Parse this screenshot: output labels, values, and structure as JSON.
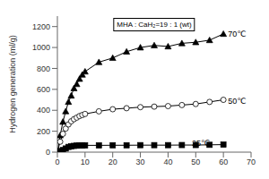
{
  "chart_data": {
    "type": "line",
    "title": "MHA : CaH₂=19 : 1 (wt)",
    "ylabel": "Hydrogen generation (ml/g)",
    "x": [
      0,
      1,
      2,
      3,
      4,
      5,
      6,
      7,
      8,
      9,
      10,
      15,
      20,
      25,
      30,
      35,
      40,
      45,
      50,
      55,
      60
    ],
    "series": [
      {
        "color": "#000000",
        "marker": "triangle",
        "values": [
          0,
          160,
          290,
          390,
          480,
          540,
          610,
          650,
          700,
          740,
          770,
          860,
          900,
          960,
          1000,
          1020,
          1010,
          1040,
          1050,
          1070,
          1130
        ]
      },
      {
        "color": "#000000",
        "marker": "circle-open",
        "values": [
          0,
          100,
          175,
          225,
          265,
          295,
          315,
          330,
          345,
          355,
          365,
          390,
          410,
          420,
          430,
          435,
          440,
          450,
          460,
          480,
          500
        ]
      },
      {
        "color": "#000000",
        "marker": "square",
        "values": [
          0,
          10,
          20,
          35,
          50,
          55,
          60,
          62,
          63,
          64,
          65,
          65,
          66,
          66,
          67,
          67,
          67,
          68,
          68,
          70,
          72
        ]
      }
    ],
    "annotations": [
      {
        "text": "70℃",
        "x": 61,
        "y": 1130
      },
      {
        "text": "50℃",
        "x": 61,
        "y": 490
      },
      {
        "text": "25℃",
        "x": 48,
        "y": 88
      }
    ],
    "xlim": [
      0,
      70
    ],
    "ylim": [
      0,
      1300
    ],
    "xticks": [
      0,
      10,
      20,
      30,
      40,
      50,
      60,
      70
    ],
    "yticks": [
      0,
      200,
      400,
      600,
      800,
      1000,
      1200
    ],
    "grid": false
  }
}
